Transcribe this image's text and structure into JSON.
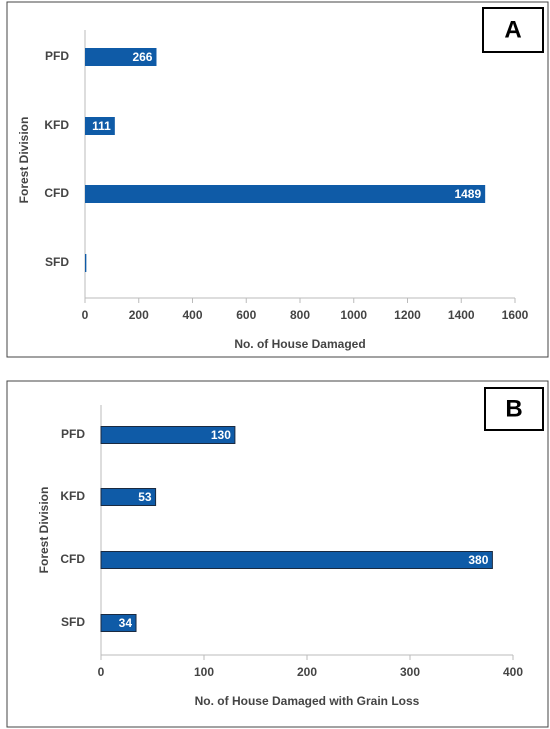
{
  "chart_data": [
    {
      "type": "bar",
      "orientation": "horizontal",
      "annotation": "A",
      "ylabel": "Forest Division",
      "xlabel": "No. of House Damaged",
      "categories": [
        "PFD",
        "KFD",
        "CFD",
        "SFD"
      ],
      "values": [
        266,
        111,
        1489,
        5
      ],
      "color": "#0f5ba7",
      "xlim": [
        0,
        1600
      ],
      "xticks": [
        0,
        200,
        400,
        600,
        800,
        1000,
        1200,
        1400,
        1600
      ]
    },
    {
      "type": "bar",
      "orientation": "horizontal",
      "annotation": "B",
      "ylabel": "Forest Division",
      "xlabel": "No. of House Damaged with Grain Loss",
      "categories": [
        "PFD",
        "KFD",
        "CFD",
        "SFD"
      ],
      "values": [
        130,
        53,
        380,
        34
      ],
      "color": "#0f5ba7",
      "xlim": [
        0,
        400
      ],
      "xticks": [
        0,
        100,
        200,
        300,
        400
      ]
    }
  ]
}
